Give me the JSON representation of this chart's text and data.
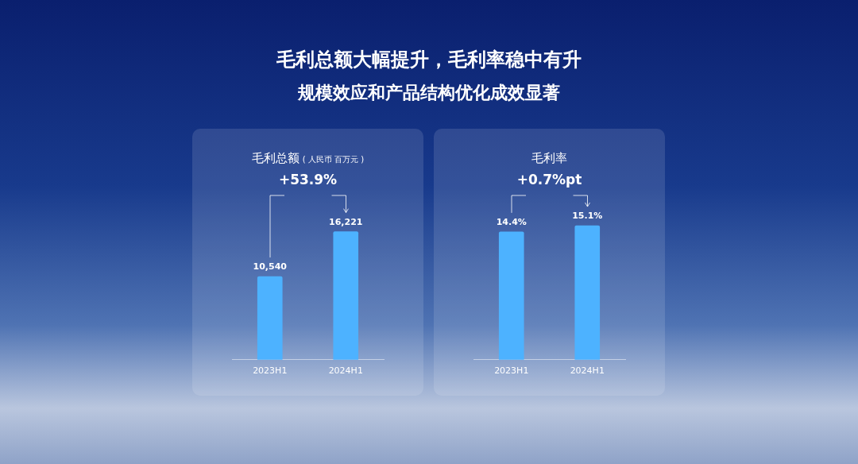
{
  "chart_data": [
    {
      "type": "other",
      "title": "毛利总额大幅提升，毛利率稳中有升",
      "subtitle": "规模效应和产品结构优化成效显著"
    },
    {
      "type": "bar",
      "title": "毛利总额",
      "subtitle": "( 人民币 百万元 )",
      "categories": [
        "2023H1",
        "2024H1"
      ],
      "values": [
        10540,
        16221
      ],
      "value_labels": [
        "10,540",
        "16,221"
      ],
      "color": "#4db2ff",
      "annotations": [
        "+53.9%"
      ]
    },
    {
      "type": "bar",
      "title": "毛利率",
      "categories": [
        "2023H1",
        "2024H1"
      ],
      "values": [
        14.4,
        15.1
      ],
      "value_labels": [
        "14.4%",
        "15.1%"
      ],
      "color": "#4db2ff",
      "annotations": [
        "+0.7%pt"
      ]
    }
  ]
}
